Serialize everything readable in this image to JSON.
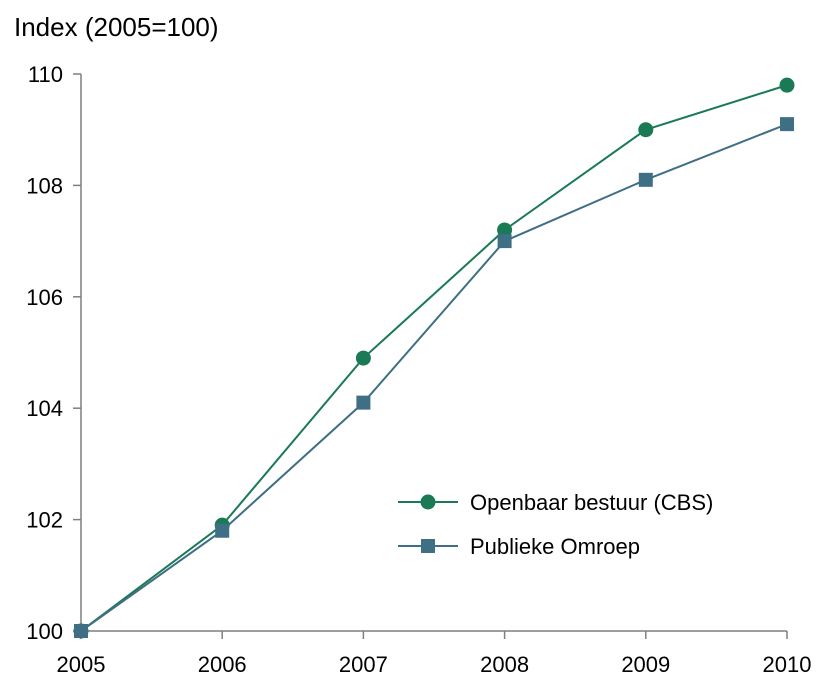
{
  "chart_data": {
    "type": "line",
    "title": "",
    "ylabel": "Index (2005=100)",
    "xlabel": "",
    "x": [
      "2005",
      "2006",
      "2007",
      "2008",
      "2009",
      "2010"
    ],
    "ylim": [
      100,
      110
    ],
    "yticks": [
      "100",
      "102",
      "104",
      "106",
      "108",
      "110"
    ],
    "grid": false,
    "legend_position": "bottom-right",
    "series": [
      {
        "name": "Openbaar bestuur (CBS)",
        "values": [
          100,
          101.9,
          104.9,
          107.2,
          109.0,
          109.8
        ],
        "color": "#1a7a55",
        "marker": "circle"
      },
      {
        "name": "Publieke Omroep",
        "values": [
          100,
          101.8,
          104.1,
          107.0,
          108.1,
          109.1
        ],
        "color": "#3e6f84",
        "marker": "square"
      }
    ]
  }
}
